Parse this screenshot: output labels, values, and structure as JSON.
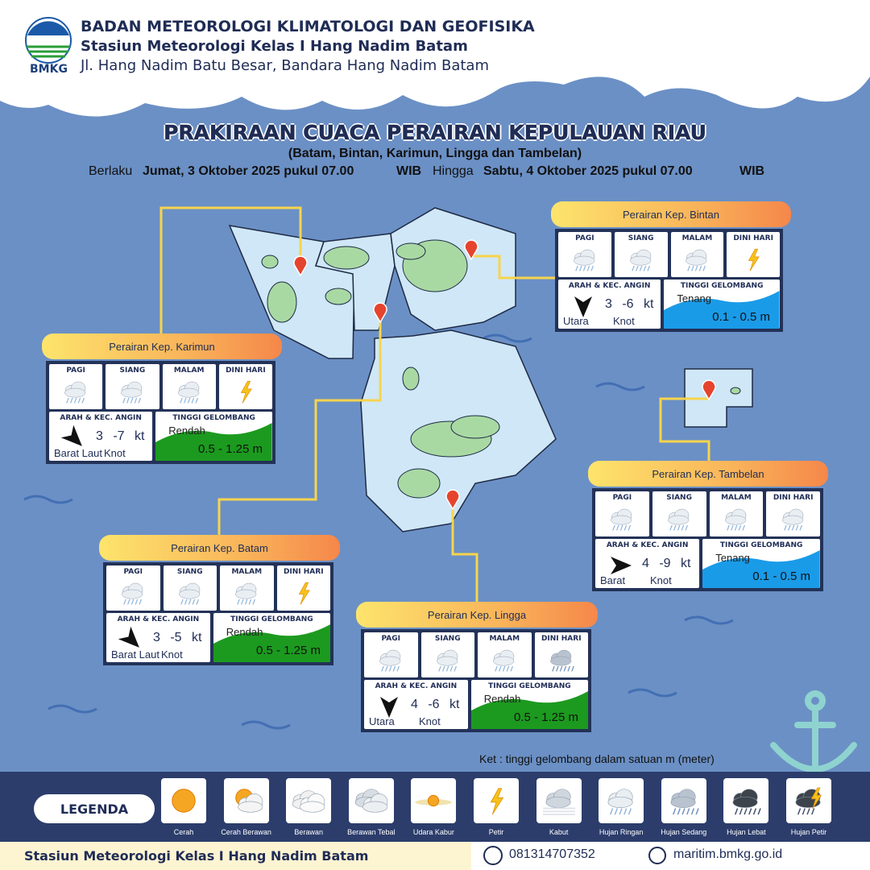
{
  "header": {
    "logo": "BMKG",
    "org": "BADAN METEOROLOGI KLIMATOLOGI DAN GEOFISIKA",
    "station": "Stasiun Meteorologi Kelas I Hang Nadim Batam",
    "address": "Jl. Hang Nadim Batu Besar, Bandara Hang Nadim Batam"
  },
  "title": {
    "main": "PRAKIRAAN CUACA PERAIRAN KEPULAUAN RIAU",
    "sub": "(Batam, Bintan, Karimun, Lingga dan Tambelan)",
    "validity": {
      "from_label": "Berlaku",
      "from": "Jumat, 3 Oktober 2025 pukul 07.00",
      "from_tz": "WIB",
      "to_label": "Hingga",
      "to": "Sabtu, 4 Oktober 2025 pukul 07.00",
      "to_tz": "WIB"
    }
  },
  "panel_labels": {
    "periods": [
      "PAGI",
      "SIANG",
      "MALAM",
      "DINI HARI"
    ],
    "wind": "ARAH & KEC. ANGIN",
    "wave": "TINGGI GELOMBANG",
    "wind_unit": "Knot"
  },
  "regions": [
    {
      "name": "Perairan Kep. Bintan",
      "wind_direction": "Utara",
      "wind_speed": "3 -6 kt",
      "wave_category": "Tenang",
      "wave_height": "0.1 - 0.5 m"
    },
    {
      "name": "Perairan Kep. Karimun",
      "wind_direction": "Barat Laut",
      "wind_speed": "3 -7 kt",
      "wave_category": "Rendah",
      "wave_height": "0.5 - 1.25 m"
    },
    {
      "name": "Perairan Kep. Tambelan",
      "wind_direction": "Barat",
      "wind_speed": "4 -9 kt",
      "wave_category": "Tenang",
      "wave_height": "0.1 - 0.5 m"
    },
    {
      "name": "Perairan Kep. Batam",
      "wind_direction": "Barat Laut",
      "wind_speed": "3 -5 kt",
      "wave_category": "Rendah",
      "wave_height": "0.5 - 1.25 m"
    },
    {
      "name": "Perairan Kep. Lingga",
      "wind_direction": "Utara",
      "wind_speed": "4 -6 kt",
      "wave_category": "Rendah",
      "wave_height": "0.5 - 1.25 m"
    }
  ],
  "note": "Ket : tinggi gelombang dalam satuan m (meter)",
  "legend": {
    "label": "LEGENDA",
    "items": [
      "Cerah",
      "Cerah Berawan",
      "Berawan",
      "Berawan Tebal",
      "Udara Kabur",
      "Petir",
      "Kabut",
      "Hujan Ringan",
      "Hujan Sedang",
      "Hujan Lebat",
      "Hujan Petir"
    ]
  },
  "footer": {
    "station": "Stasiun Meteorologi Kelas I Hang Nadim Batam",
    "phone": "081314707352",
    "website": "maritim.bmkg.go.id"
  }
}
